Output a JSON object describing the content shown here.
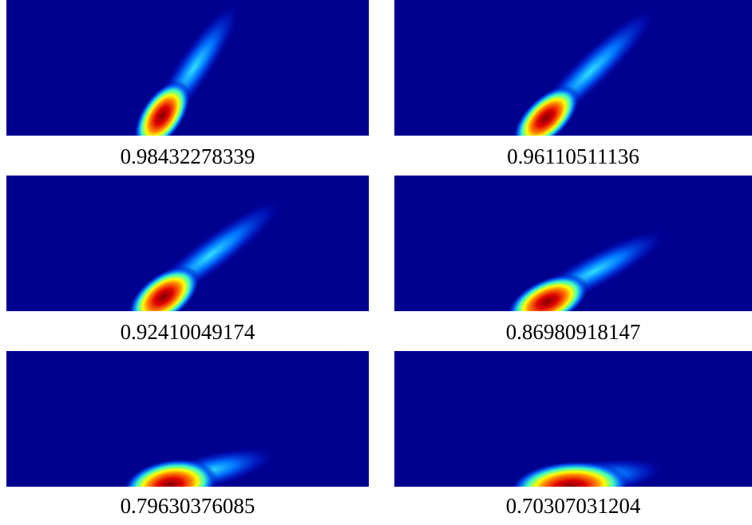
{
  "panels": [
    {
      "caption": "0.98432278339"
    },
    {
      "caption": "0.96110511136"
    },
    {
      "caption": "0.92410049174"
    },
    {
      "caption": "0.86980918147"
    },
    {
      "caption": "0.79630376085"
    },
    {
      "caption": "0.70307031204"
    }
  ]
}
